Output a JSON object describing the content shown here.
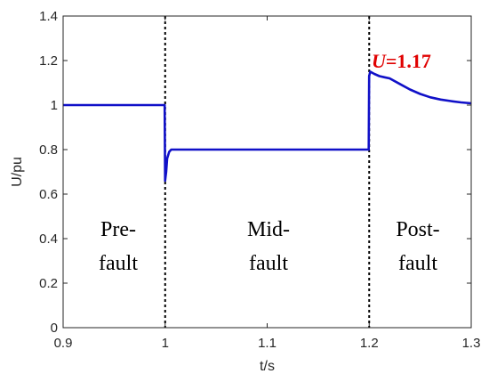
{
  "chart_data": {
    "type": "line",
    "xlabel": "t/s",
    "ylabel": "U/pu",
    "xlim": [
      0.9,
      1.3
    ],
    "ylim": [
      0,
      1.4
    ],
    "xticks": [
      0.9,
      1.0,
      1.1,
      1.2,
      1.3
    ],
    "xtick_labels": [
      "0.9",
      "1",
      "1.1",
      "1.2",
      "1.3"
    ],
    "yticks": [
      0,
      0.2,
      0.4,
      0.6,
      0.8,
      1.0,
      1.2,
      1.4
    ],
    "ytick_labels": [
      "0",
      "0.2",
      "0.4",
      "0.6",
      "0.8",
      "1",
      "1.2",
      "1.4"
    ],
    "grid": false,
    "series": [
      {
        "color": "#1010c8",
        "x": [
          0.9,
          0.9995,
          1.0,
          1.001,
          1.002,
          1.004,
          1.006,
          1.01,
          1.05,
          1.1,
          1.15,
          1.1995,
          1.2,
          1.201,
          1.205,
          1.21,
          1.215,
          1.22,
          1.23,
          1.24,
          1.25,
          1.26,
          1.27,
          1.28,
          1.29,
          1.3
        ],
        "y": [
          1.0,
          1.0,
          0.66,
          0.7,
          0.76,
          0.79,
          0.8,
          0.8,
          0.8,
          0.8,
          0.8,
          0.8,
          1.13,
          1.15,
          1.14,
          1.13,
          1.125,
          1.12,
          1.095,
          1.07,
          1.05,
          1.035,
          1.025,
          1.018,
          1.012,
          1.008
        ]
      }
    ],
    "dividers": [
      1.0,
      1.2
    ],
    "regions": [
      {
        "lines": [
          "Pre-",
          "fault"
        ]
      },
      {
        "lines": [
          "Mid-",
          "fault"
        ]
      },
      {
        "lines": [
          "Post-",
          "fault"
        ]
      }
    ],
    "annotation": {
      "var": "U",
      "value": "=1.17",
      "color": "#e00000"
    }
  }
}
